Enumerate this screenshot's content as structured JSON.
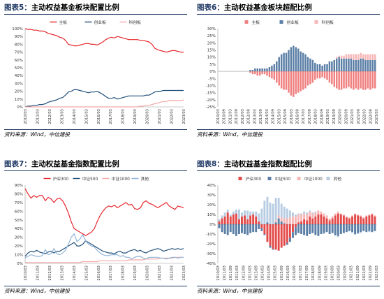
{
  "panels": [
    {
      "label": "图表5：",
      "title": "主动权益基金板块配置比例",
      "source": "资料来源：Wind，中信建投"
    },
    {
      "label": "图表6：",
      "title": "主动权益基金板块超配比例",
      "source": "资料来源：Wind，中信建投"
    },
    {
      "label": "图表7：",
      "title": "主动权益基金指数配置比例",
      "source": "资料来源：Wind，中信建投"
    },
    {
      "label": "图表8：",
      "title": "主动权益基金指数超配比例",
      "source": "资料来源：Wind，中信建投"
    }
  ],
  "chart_data": [
    {
      "type": "line",
      "x_ticks": [
        "2010/03",
        "2011/03",
        "2012/03",
        "2013/03",
        "2014/03",
        "2015/03",
        "2016/03",
        "2017/03",
        "2018/03",
        "2019/03",
        "2020/03",
        "2021/03",
        "2022/03",
        "2023/03"
      ],
      "ylim": [
        0,
        100
      ],
      "y_ticks": [
        "0%",
        "10%",
        "20%",
        "30%",
        "40%",
        "50%",
        "60%",
        "70%",
        "80%",
        "90%",
        "100%"
      ],
      "grid": false,
      "legend": "top-center",
      "series": [
        {
          "name": "主板",
          "color": "#e6262c",
          "values": [
            100,
            99,
            99,
            98,
            98,
            97,
            97,
            96,
            94,
            93,
            92,
            91,
            89,
            88,
            85,
            80,
            79,
            78,
            78,
            79,
            80,
            81,
            81,
            80,
            80,
            79,
            81,
            83,
            86,
            88,
            89,
            88,
            90,
            89,
            88,
            87,
            86,
            86,
            86,
            86,
            85,
            85,
            84,
            83,
            80,
            75,
            73,
            72,
            71,
            70,
            71,
            72,
            72,
            71,
            70,
            70
          ]
        },
        {
          "name": "创业板",
          "color": "#1f4e79",
          "values": [
            0,
            1,
            1,
            2,
            2,
            3,
            3,
            4,
            6,
            7,
            8,
            9,
            11,
            12,
            15,
            19,
            20,
            22,
            22,
            21,
            20,
            19,
            18,
            19,
            19,
            20,
            18,
            16,
            13,
            11,
            11,
            12,
            10,
            11,
            12,
            13,
            14,
            14,
            14,
            14,
            14,
            14,
            15,
            15,
            17,
            19,
            20,
            20,
            21,
            21,
            21,
            21,
            21,
            21,
            21,
            21
          ]
        },
        {
          "name": "科创板",
          "color": "#f4a8a8",
          "values": [
            0,
            0,
            0,
            0,
            0,
            0,
            0,
            0,
            0,
            0,
            0,
            0,
            0,
            0,
            0,
            0,
            0,
            0,
            0,
            0,
            0,
            0,
            0,
            0,
            0,
            0,
            0,
            0,
            0,
            0,
            0,
            0,
            0,
            0,
            0,
            0,
            0,
            0,
            0,
            0,
            1,
            1,
            2,
            2,
            3,
            4,
            5,
            6,
            7,
            7,
            8,
            8,
            8,
            8,
            8,
            9
          ]
        }
      ]
    },
    {
      "type": "bar",
      "x_ticks": [
        "2010/03",
        "2010/09",
        "2011/03",
        "2011/09",
        "2012/03",
        "2012/09",
        "2013/03",
        "2013/09",
        "2014/03",
        "2014/09",
        "2015/03",
        "2015/09",
        "2016/03",
        "2016/09",
        "2017/03",
        "2017/09",
        "2018/03",
        "2018/09",
        "2019/03",
        "2019/09",
        "2020/03",
        "2020/09",
        "2021/03",
        "2021/09",
        "2022/03",
        "2022/09",
        "2023/03"
      ],
      "ylim": [
        -25,
        30
      ],
      "y_ticks": [
        "-25%",
        "-20%",
        "-15%",
        "-10%",
        "-5%",
        "0%",
        "5%",
        "10%",
        "15%",
        "20%",
        "25%",
        "30%"
      ],
      "grid": false,
      "legend": "top-center",
      "series": [
        {
          "name": "主板",
          "color": "#f08080",
          "values": [
            0,
            0,
            0,
            0,
            0,
            0,
            0,
            0,
            0,
            0,
            0,
            0,
            0,
            -1,
            -2,
            -2,
            -3,
            -3,
            -2,
            -2,
            -3,
            -4,
            -5,
            -6,
            -8,
            -10,
            -12,
            -13,
            -13,
            -15,
            -17,
            -18,
            -16,
            -15,
            -14,
            -13,
            -12,
            -10,
            -9,
            -8,
            -6,
            -5,
            -5,
            -4,
            -5,
            -6,
            -8,
            -9,
            -11,
            -12,
            -13,
            -13,
            -12,
            -12,
            -11,
            -12,
            -13,
            -12,
            -13,
            -12,
            -13,
            -13,
            -12,
            -13,
            -12,
            -12
          ]
        },
        {
          "name": "创业板",
          "color": "#5b7fa6",
          "values": [
            0,
            0,
            0,
            0,
            0,
            0,
            0,
            0,
            0,
            0,
            0,
            0,
            0,
            1,
            1,
            2,
            2,
            2,
            2,
            2,
            2,
            3,
            4,
            5,
            7,
            10,
            12,
            13,
            13,
            15,
            17,
            18,
            17,
            16,
            14,
            13,
            12,
            10,
            9,
            8,
            6,
            5,
            5,
            4,
            5,
            5,
            7,
            7,
            8,
            9,
            10,
            9,
            9,
            9,
            9,
            9,
            8,
            8,
            8,
            9,
            9,
            8,
            8,
            8,
            8,
            8
          ]
        },
        {
          "name": "科创板",
          "color": "#f7b6b6",
          "values": [
            0,
            0,
            0,
            0,
            0,
            0,
            0,
            0,
            0,
            0,
            0,
            0,
            0,
            0,
            0,
            0,
            0,
            0,
            0,
            0,
            0,
            0,
            0,
            0,
            0,
            0,
            0,
            0,
            0,
            0,
            0,
            0,
            0,
            0,
            0,
            0,
            0,
            0,
            0,
            0,
            0,
            0,
            0,
            0,
            0,
            0,
            0,
            0,
            0,
            1,
            1,
            2,
            2,
            3,
            3,
            3,
            4,
            4,
            4,
            4,
            3,
            4,
            4,
            4,
            4,
            4
          ]
        }
      ]
    },
    {
      "type": "line",
      "x_ticks": [
        "2010/03",
        "2011/03",
        "2012/03",
        "2013/03",
        "2014/03",
        "2015/03",
        "2016/03",
        "2017/03",
        "2018/03",
        "2019/03",
        "2020/03",
        "2021/03",
        "2022/03",
        "2023/03"
      ],
      "ylim": [
        0,
        90
      ],
      "y_ticks": [
        "0%",
        "10%",
        "20%",
        "30%",
        "40%",
        "50%",
        "60%",
        "70%",
        "80%",
        "90%"
      ],
      "grid": false,
      "legend": "top-center",
      "series": [
        {
          "name": "沪深300",
          "color": "#e6262c",
          "values": [
            86,
            80,
            75,
            78,
            76,
            78,
            78,
            72,
            76,
            74,
            70,
            74,
            75,
            72,
            66,
            58,
            48,
            40,
            38,
            36,
            34,
            32,
            34,
            36,
            40,
            48,
            55,
            60,
            64,
            66,
            65,
            67,
            64,
            66,
            68,
            70,
            67,
            68,
            63,
            62,
            64,
            70,
            72,
            69,
            68,
            66,
            64,
            66,
            68,
            70,
            66,
            64,
            62,
            66,
            65,
            64
          ]
        },
        {
          "name": "中证500",
          "color": "#1f4e79",
          "values": [
            8,
            12,
            14,
            13,
            15,
            13,
            12,
            11,
            13,
            14,
            12,
            14,
            14,
            16,
            18,
            20,
            22,
            24,
            20,
            20,
            22,
            26,
            24,
            22,
            20,
            18,
            16,
            14,
            13,
            12,
            12,
            11,
            13,
            14,
            12,
            12,
            14,
            15,
            16,
            14,
            15,
            13,
            12,
            14,
            15,
            16,
            17,
            16,
            14,
            15,
            16,
            17,
            16,
            17,
            16,
            17
          ]
        },
        {
          "name": "中证1000",
          "color": "#f4a8a8",
          "values": [
            1,
            1,
            1,
            1,
            1,
            1,
            1,
            1,
            1,
            1,
            1,
            1,
            1,
            1,
            1,
            1,
            1,
            1,
            1,
            1,
            2,
            2,
            2,
            2,
            2,
            2,
            3,
            3,
            3,
            3,
            3,
            3,
            3,
            3,
            3,
            3,
            4,
            4,
            4,
            4,
            4,
            4,
            5,
            5,
            5,
            5,
            5,
            6,
            6,
            6,
            6,
            6,
            7,
            7,
            7,
            7
          ]
        },
        {
          "name": "其他",
          "color": "#8fb4d6",
          "values": [
            6,
            8,
            10,
            9,
            8,
            8,
            9,
            16,
            10,
            11,
            17,
            11,
            10,
            12,
            15,
            22,
            30,
            34,
            25,
            28,
            33,
            26,
            22,
            20,
            19,
            15,
            12,
            10,
            9,
            9,
            10,
            10,
            10,
            8,
            9,
            7,
            7,
            5,
            7,
            8,
            8,
            6,
            5,
            7,
            7,
            7,
            7,
            6,
            6,
            5,
            6,
            7,
            7,
            6,
            7,
            7
          ]
        }
      ]
    },
    {
      "type": "bar",
      "x_ticks": [
        "2010/03",
        "2011/03",
        "2011/09",
        "2012/03",
        "2012/09",
        "2013/03",
        "2013/09",
        "2014/03",
        "2014/09",
        "2015/03",
        "2015/09",
        "2016/03",
        "2016/09",
        "2017/03",
        "2017/09",
        "2018/03",
        "2018/09",
        "2019/03",
        "2019/09",
        "2020/03",
        "2020/09",
        "2021/03",
        "2021/09",
        "2022/03",
        "2022/09",
        "2023/03"
      ],
      "ylim": [
        -40,
        40
      ],
      "y_ticks": [
        "-40%",
        "-30%",
        "-20%",
        "-10%",
        "0%",
        "10%",
        "20%",
        "30%",
        "40%"
      ],
      "grid": false,
      "legend": "top-center",
      "series": [
        {
          "name": "沪深300",
          "color": "#e34a4a",
          "values": [
            3,
            6,
            8,
            12,
            8,
            10,
            11,
            5,
            8,
            9,
            5,
            9,
            10,
            8,
            3,
            -4,
            -10,
            -18,
            -22,
            -25,
            -26,
            -27,
            -24,
            -22,
            -19,
            -14,
            -8,
            -3,
            2,
            3,
            5,
            4,
            8,
            6,
            8,
            10,
            10,
            8,
            6,
            4,
            6,
            9,
            11,
            10,
            9,
            7,
            6,
            8,
            10,
            9,
            8,
            6,
            8,
            9,
            10,
            8
          ]
        },
        {
          "name": "中证500",
          "color": "#5b7fa6",
          "values": [
            -4,
            -8,
            -10,
            -11,
            -8,
            -10,
            -12,
            -10,
            -9,
            -10,
            -11,
            -9,
            -8,
            -8,
            -5,
            -3,
            -1,
            2,
            -2,
            -1,
            2,
            6,
            3,
            1,
            -2,
            -4,
            -6,
            -8,
            -9,
            -10,
            -11,
            -12,
            -10,
            -9,
            -11,
            -12,
            -10,
            -9,
            -8,
            -10,
            -9,
            -11,
            -12,
            -10,
            -9,
            -8,
            -7,
            -8,
            -10,
            -9,
            -8,
            -7,
            -8,
            -7,
            -8,
            -7
          ]
        },
        {
          "name": "中证1000",
          "color": "#f7b6b6",
          "values": [
            0,
            0,
            0,
            0,
            0,
            0,
            0,
            0,
            0,
            0,
            0,
            0,
            0,
            0,
            0,
            0,
            0,
            0,
            0,
            0,
            2,
            3,
            4,
            5,
            6,
            7,
            8,
            8,
            8,
            7,
            6,
            6,
            5,
            5,
            4,
            4,
            3,
            3,
            3,
            2,
            2,
            2,
            2,
            1,
            1,
            1,
            1,
            1,
            1,
            1,
            1,
            1,
            1,
            1,
            1,
            1
          ]
        },
        {
          "name": "其他",
          "color": "#b8cde3",
          "values": [
            2,
            3,
            4,
            3,
            2,
            3,
            4,
            10,
            4,
            5,
            9,
            4,
            3,
            5,
            8,
            16,
            24,
            26,
            22,
            21,
            23,
            18,
            14,
            12,
            10,
            7,
            4,
            2,
            1,
            1,
            2,
            2,
            1,
            1,
            1,
            0,
            0,
            -1,
            0,
            0,
            0,
            -1,
            -1,
            0,
            0,
            0,
            0,
            -1,
            -1,
            -1,
            -1,
            0,
            0,
            -1,
            0,
            0
          ]
        }
      ]
    }
  ]
}
